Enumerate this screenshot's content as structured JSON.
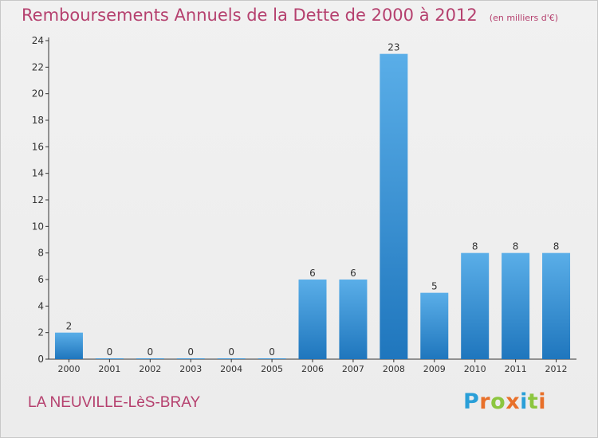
{
  "header": {
    "title": "Remboursements Annuels de la Dette de 2000 à 2012",
    "unit": "(en milliers d'€)"
  },
  "footer": {
    "commune": "LA NEUVILLE-LèS-BRAY",
    "logo": "Proxiti"
  },
  "colors": {
    "title": "#b5406e",
    "bar_light": "#5aaee8",
    "bar_dark": "#1f76bd",
    "axis": "#333333"
  },
  "chart_data": {
    "type": "bar",
    "categories": [
      "2000",
      "2001",
      "2002",
      "2003",
      "2004",
      "2005",
      "2006",
      "2007",
      "2008",
      "2009",
      "2010",
      "2011",
      "2012"
    ],
    "values": [
      2,
      0,
      0,
      0,
      0,
      0,
      6,
      6,
      23,
      5,
      8,
      8,
      8
    ],
    "title": "Remboursements Annuels de la Dette de 2000 à 2012",
    "ylim": [
      0,
      24
    ],
    "yticks": [
      0,
      2,
      4,
      6,
      8,
      10,
      12,
      14,
      16,
      18,
      20,
      22,
      24
    ],
    "grid": false,
    "legend": "none",
    "data_labels": true
  }
}
